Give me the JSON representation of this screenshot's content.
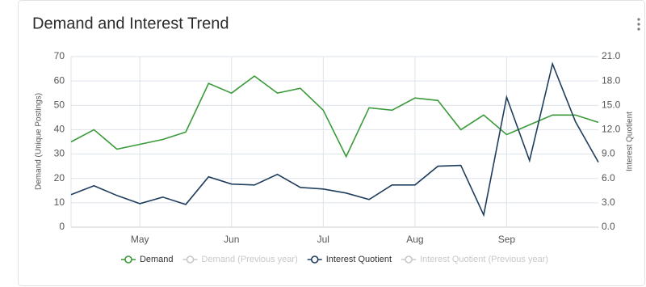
{
  "chart_data": {
    "type": "line",
    "title": "Demand and Interest Trend",
    "y_label": "Demand (Unique Postings)",
    "y2_label": "Interest Quotient",
    "categories": [
      null,
      null,
      null,
      "May",
      null,
      null,
      null,
      "Jun",
      null,
      null,
      null,
      "Jul",
      null,
      null,
      null,
      "Aug",
      null,
      null,
      null,
      "Sep",
      null,
      null,
      null,
      null
    ],
    "ylim": [
      0,
      70
    ],
    "yticks": [
      0,
      10,
      20,
      30,
      40,
      50,
      60,
      70
    ],
    "y2lim": [
      0,
      21
    ],
    "y2ticks": [
      {
        "value": 0,
        "label": "0.0"
      },
      {
        "value": 3,
        "label": "3.0"
      },
      {
        "value": 6,
        "label": "6.0"
      },
      {
        "value": 9,
        "label": "9.0"
      },
      {
        "value": 12,
        "label": "12.0"
      },
      {
        "value": 15,
        "label": "15.0"
      },
      {
        "value": 18,
        "label": "18.0"
      },
      {
        "value": 21,
        "label": "21.0"
      }
    ],
    "grid": true,
    "series": [
      {
        "name": "Demand",
        "color": "#3a9a3a",
        "values": [
          35,
          40,
          32,
          34,
          36,
          39,
          59,
          55,
          62,
          55,
          57,
          48,
          29,
          49,
          48,
          53,
          52,
          40,
          46,
          38,
          42,
          46,
          46,
          43
        ]
      },
      {
        "name": "Demand (Previous year)",
        "color": "#c8c8c8",
        "visible": false
      },
      {
        "name": "Interest Quotient",
        "color": "#1f3d5c",
        "axis": "y2",
        "values": [
          4.0,
          5.1,
          3.9,
          2.9,
          3.7,
          2.8,
          6.2,
          5.3,
          5.2,
          6.5,
          4.9,
          4.7,
          4.2,
          3.4,
          5.2,
          5.2,
          7.5,
          7.6,
          1.5,
          16.0,
          8.2,
          20.1,
          13.0,
          8.0
        ]
      },
      {
        "name": "Interest Quotient (Previous year)",
        "color": "#c8c8c8",
        "axis": "y2",
        "visible": false
      }
    ]
  }
}
